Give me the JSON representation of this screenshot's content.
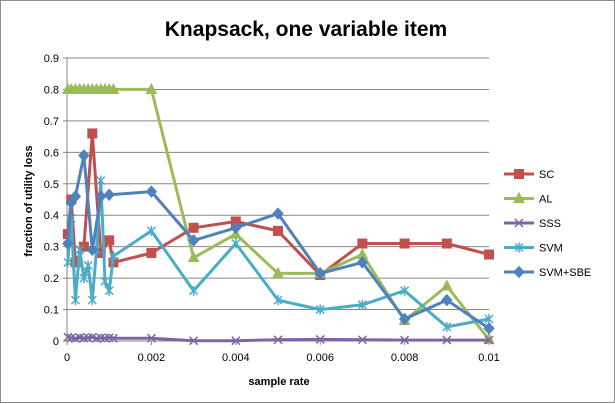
{
  "chart_data": {
    "type": "line",
    "title": "Knapsack, one variable item",
    "xlabel": "sample rate",
    "ylabel": "fraction of utility loss",
    "xlim": [
      0,
      0.01
    ],
    "ylim": [
      0,
      0.9
    ],
    "x_ticks": [
      "0",
      "0.002",
      "0.004",
      "0.006",
      "0.008",
      "0.01"
    ],
    "y_ticks": [
      "0",
      "0.1",
      "0.2",
      "0.3",
      "0.4",
      "0.5",
      "0.6",
      "0.7",
      "0.8",
      "0.9"
    ],
    "grid": "horizontal",
    "legend": "right",
    "series": [
      {
        "name": "SC",
        "color": "#C0504D",
        "marker": "square",
        "points": [
          [
            2e-05,
            0.34
          ],
          [
            0.0001,
            0.45
          ],
          [
            0.0002,
            0.25
          ],
          [
            0.0004,
            0.3
          ],
          [
            0.0006,
            0.66
          ],
          [
            0.0008,
            0.28
          ],
          [
            0.001,
            0.32
          ],
          [
            0.0011,
            0.25
          ],
          [
            0.002,
            0.28
          ],
          [
            0.003,
            0.36
          ],
          [
            0.004,
            0.38
          ],
          [
            0.005,
            0.35
          ],
          [
            0.006,
            0.21
          ],
          [
            0.007,
            0.31
          ],
          [
            0.008,
            0.31
          ],
          [
            0.009,
            0.31
          ],
          [
            0.01,
            0.275
          ]
        ]
      },
      {
        "name": "AL",
        "color": "#9BBB59",
        "marker": "triangle",
        "points": [
          [
            2e-05,
            0.8
          ],
          [
            0.0001,
            0.8
          ],
          [
            0.0002,
            0.8
          ],
          [
            0.0003,
            0.8
          ],
          [
            0.0004,
            0.8
          ],
          [
            0.0005,
            0.8
          ],
          [
            0.0006,
            0.8
          ],
          [
            0.0007,
            0.8
          ],
          [
            0.0008,
            0.8
          ],
          [
            0.0009,
            0.8
          ],
          [
            0.001,
            0.8
          ],
          [
            0.0011,
            0.8
          ],
          [
            0.002,
            0.8
          ],
          [
            0.003,
            0.265
          ],
          [
            0.004,
            0.34
          ],
          [
            0.005,
            0.215
          ],
          [
            0.006,
            0.215
          ],
          [
            0.007,
            0.275
          ],
          [
            0.008,
            0.065
          ],
          [
            0.009,
            0.175
          ],
          [
            0.01,
            0.005
          ]
        ]
      },
      {
        "name": "SSS",
        "color": "#8064A2",
        "marker": "x",
        "points": [
          [
            2e-05,
            0.012
          ],
          [
            0.0001,
            0.01
          ],
          [
            0.0002,
            0.008
          ],
          [
            0.0003,
            0.011
          ],
          [
            0.0004,
            0.009
          ],
          [
            0.0005,
            0.01
          ],
          [
            0.0006,
            0.012
          ],
          [
            0.0007,
            0.008
          ],
          [
            0.0008,
            0.01
          ],
          [
            0.0009,
            0.009
          ],
          [
            0.001,
            0.01
          ],
          [
            0.0011,
            0.009
          ],
          [
            0.002,
            0.009
          ],
          [
            0.003,
            0.001
          ],
          [
            0.004,
            0.001
          ],
          [
            0.005,
            0.004
          ],
          [
            0.006,
            0.005
          ],
          [
            0.007,
            0.004
          ],
          [
            0.008,
            0.003
          ],
          [
            0.009,
            0.003
          ],
          [
            0.01,
            0.003
          ]
        ]
      },
      {
        "name": "SVM",
        "color": "#4BACC6",
        "marker": "asterisk",
        "points": [
          [
            2e-05,
            0.25
          ],
          [
            0.0001,
            0.39
          ],
          [
            0.0002,
            0.13
          ],
          [
            0.0003,
            0.29
          ],
          [
            0.0004,
            0.2
          ],
          [
            0.0005,
            0.24
          ],
          [
            0.0006,
            0.13
          ],
          [
            0.0007,
            0.29
          ],
          [
            0.0008,
            0.51
          ],
          [
            0.0009,
            0.19
          ],
          [
            0.001,
            0.16
          ],
          [
            0.0011,
            0.27
          ],
          [
            0.002,
            0.35
          ],
          [
            0.003,
            0.16
          ],
          [
            0.004,
            0.31
          ],
          [
            0.005,
            0.13
          ],
          [
            0.006,
            0.1
          ],
          [
            0.007,
            0.115
          ],
          [
            0.008,
            0.16
          ],
          [
            0.009,
            0.045
          ],
          [
            0.01,
            0.07
          ]
        ]
      },
      {
        "name": "SVM+SBE",
        "color": "#4F81BD",
        "marker": "diamond",
        "points": [
          [
            2e-05,
            0.31
          ],
          [
            0.0001,
            0.44
          ],
          [
            0.0002,
            0.46
          ],
          [
            0.0004,
            0.59
          ],
          [
            0.0006,
            0.29
          ],
          [
            0.0008,
            0.46
          ],
          [
            0.001,
            0.465
          ],
          [
            0.002,
            0.475
          ],
          [
            0.003,
            0.32
          ],
          [
            0.004,
            0.36
          ],
          [
            0.005,
            0.405
          ],
          [
            0.006,
            0.215
          ],
          [
            0.007,
            0.25
          ],
          [
            0.008,
            0.07
          ],
          [
            0.009,
            0.13
          ],
          [
            0.01,
            0.04
          ]
        ]
      }
    ]
  }
}
